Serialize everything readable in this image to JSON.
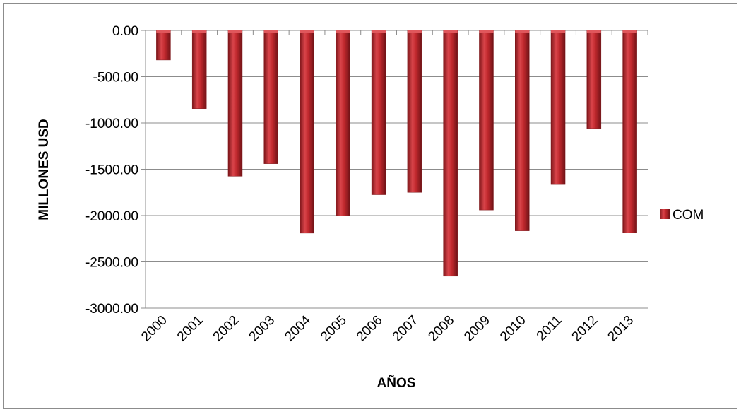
{
  "chart_data": {
    "type": "bar",
    "title": "",
    "xlabel": "AÑOS",
    "ylabel": "MILLONES USD",
    "categories": [
      "2000",
      "2001",
      "2002",
      "2003",
      "2004",
      "2005",
      "2006",
      "2007",
      "2008",
      "2009",
      "2010",
      "2011",
      "2012",
      "2013"
    ],
    "series": [
      {
        "name": "COM",
        "values": [
          -320,
          -845,
          -1575,
          -1440,
          -2190,
          -2005,
          -1775,
          -1750,
          -2655,
          -1940,
          -2165,
          -1665,
          -1060,
          -2185
        ],
        "color": "#c0282d"
      }
    ],
    "ylim": [
      -3000,
      0
    ],
    "yticks": [
      0,
      -500,
      -1000,
      -1500,
      -2000,
      -2500,
      -3000
    ],
    "ytick_labels": [
      "0.00",
      "-500.00",
      "-1000.00",
      "-1500.00",
      "-2000.00",
      "-2500.00",
      "-3000.00"
    ],
    "grid": true,
    "legend_position": "right"
  }
}
